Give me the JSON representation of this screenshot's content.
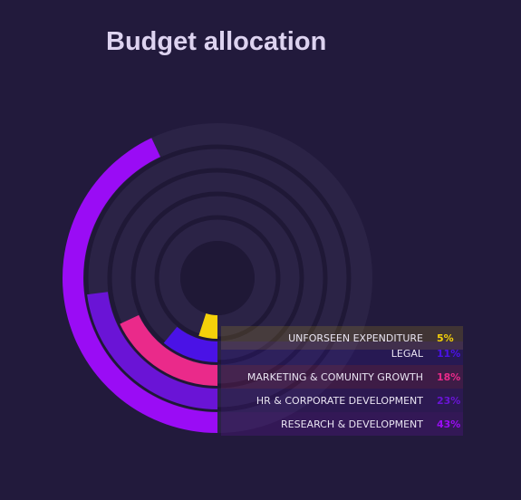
{
  "chart_data": {
    "type": "radial-bar",
    "title": "Budget allocation",
    "unit": "%",
    "series": [
      {
        "label": "UNFORSEEN EXPENDITURE",
        "value": 5,
        "value_label": "5%",
        "color": "#f5d10a"
      },
      {
        "label": "LEGAL",
        "value": 11,
        "value_label": "11%",
        "color": "#4a12e6"
      },
      {
        "label": "MARKETING & COMUNITY GROWTH",
        "value": 18,
        "value_label": "18%",
        "color": "#ea2a8a"
      },
      {
        "label": "HR & CORPORATE DEVELOPMENT",
        "value": 23,
        "value_label": "23%",
        "color": "#6a14d6"
      },
      {
        "label": "RESEARCH & DEVELOPMENT",
        "value": 43,
        "value_label": "43%",
        "color": "#9a0cf5"
      }
    ],
    "value_max": 100,
    "colors": {
      "background": "#221a3c",
      "track": "#2b2346",
      "track_line": "#1f1836",
      "label_bg": "#2c2150"
    }
  }
}
